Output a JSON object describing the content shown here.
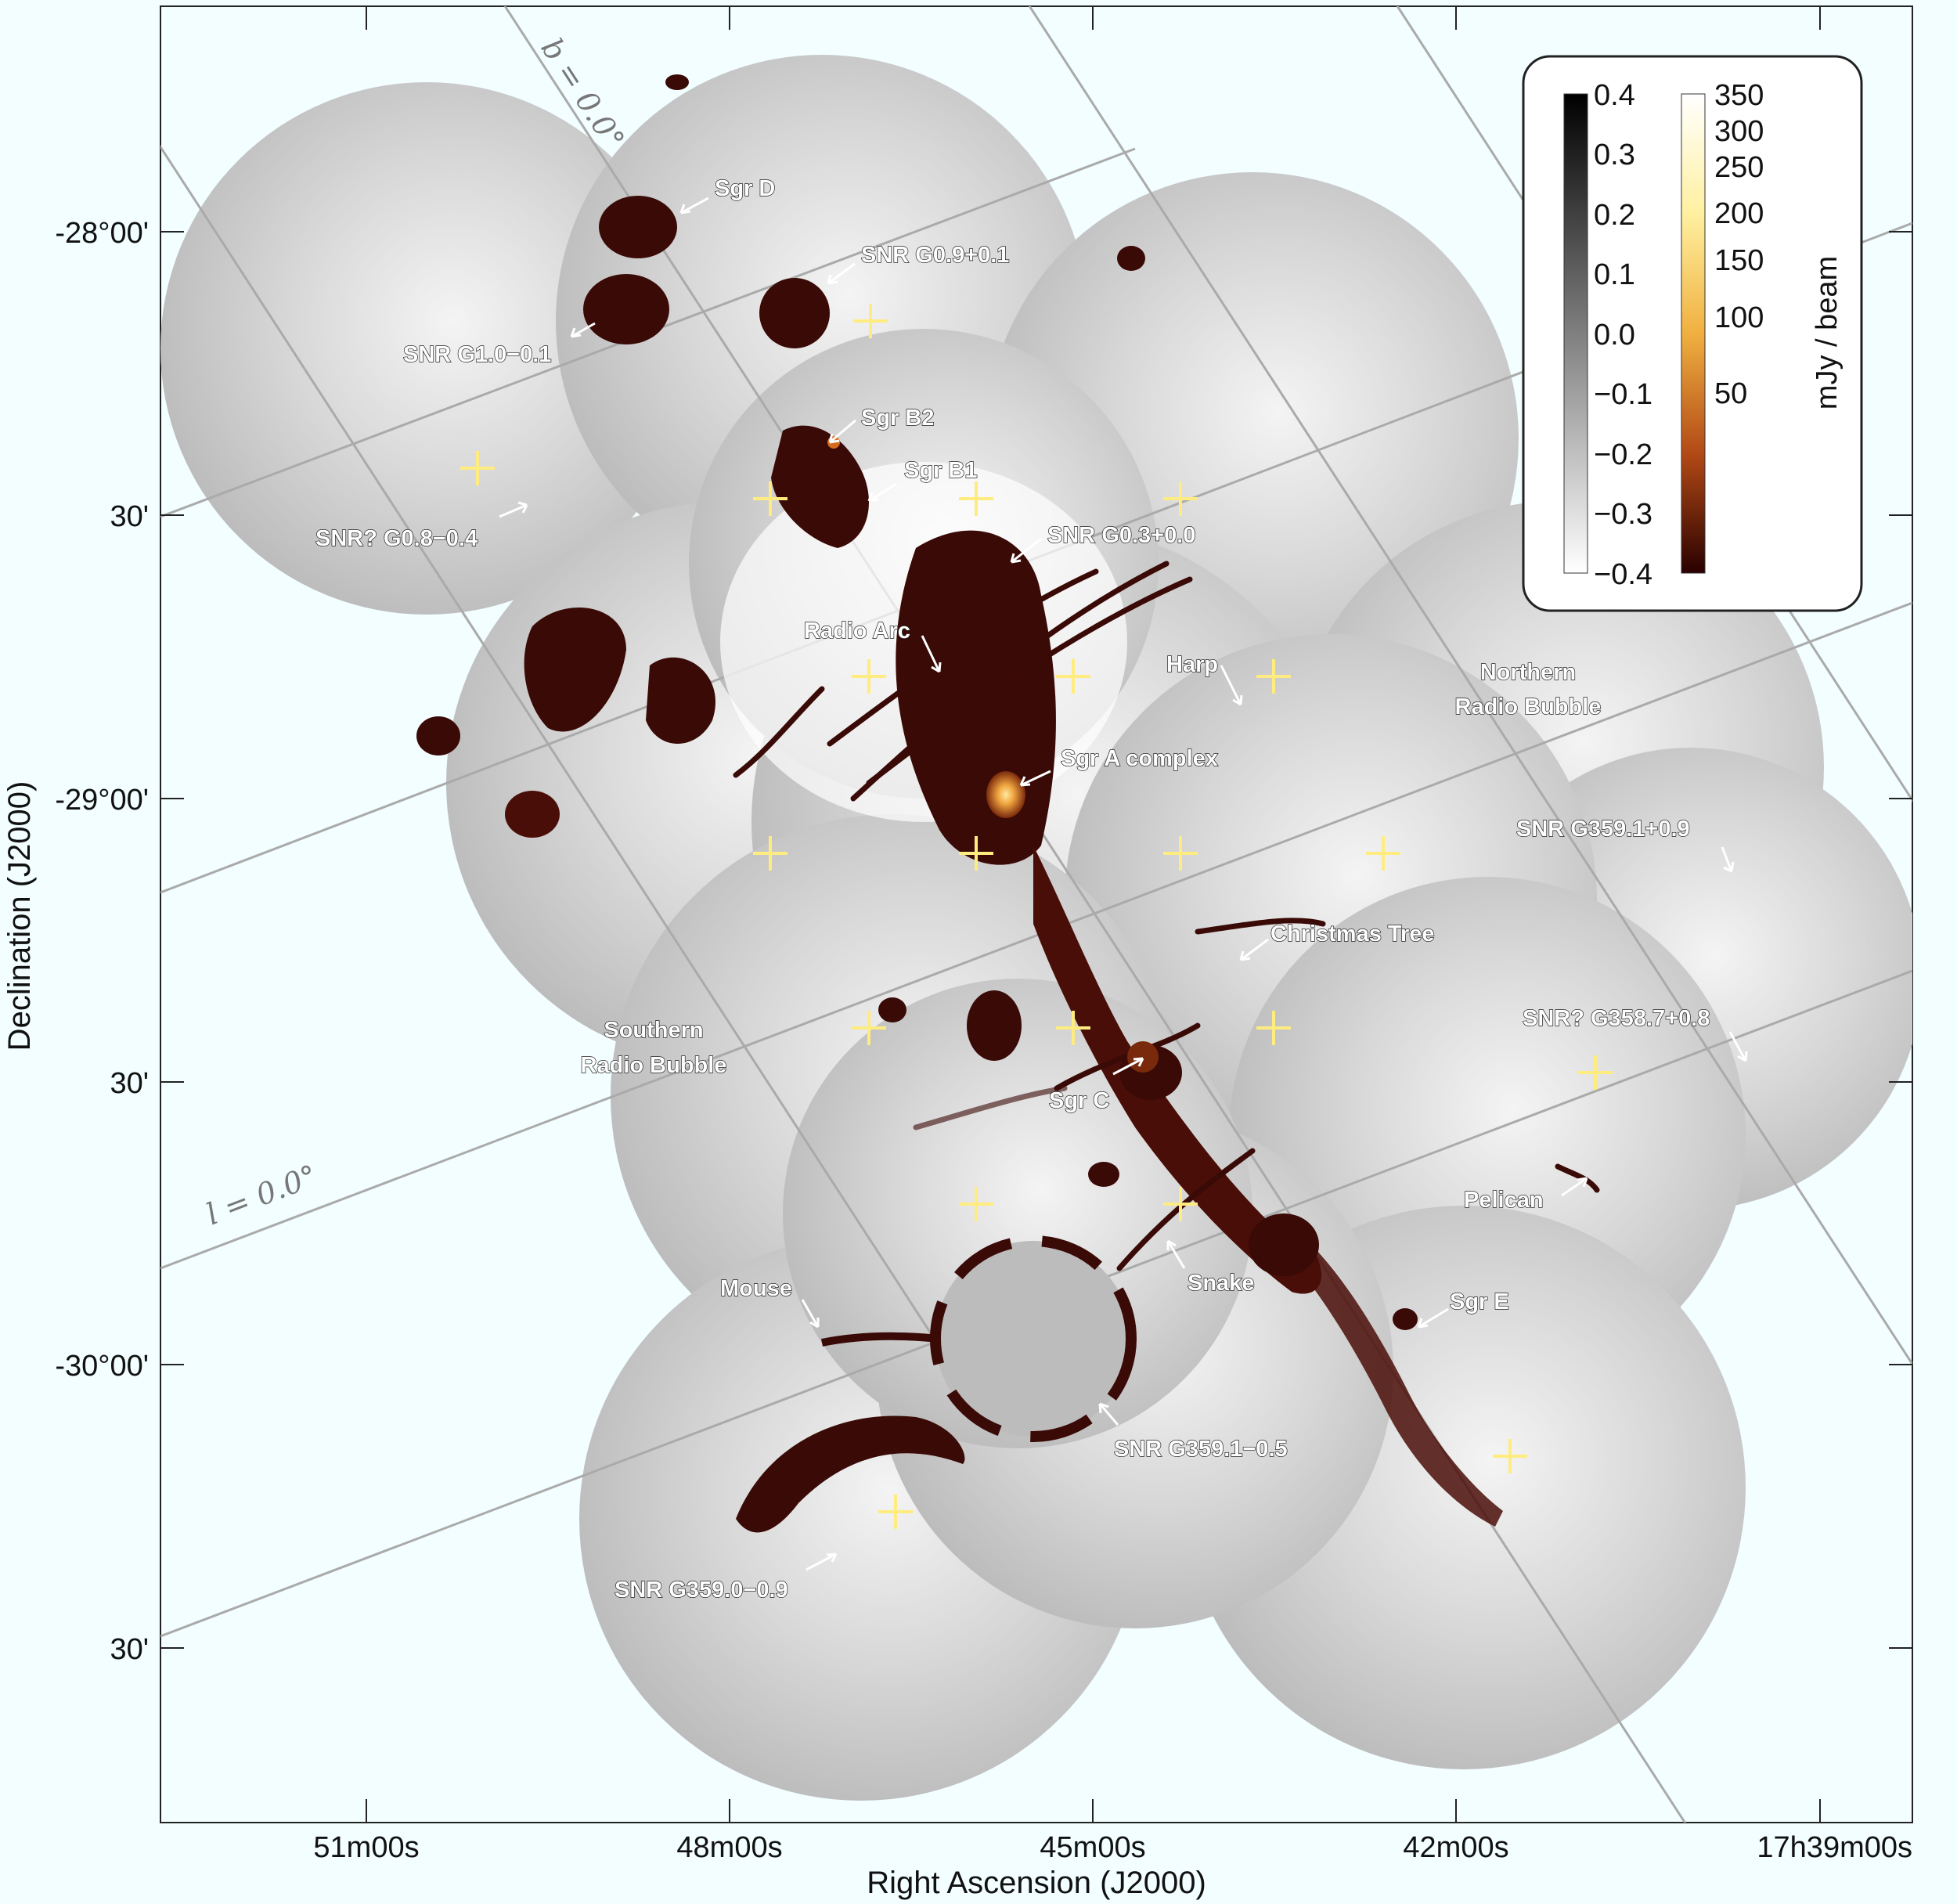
{
  "axes": {
    "x_title": "Right Ascension (J2000)",
    "y_title": "Declination (J2000)",
    "x_ticks": [
      "51m00s",
      "48m00s",
      "45m00s",
      "42m00s",
      "17h39m00s"
    ],
    "y_ticks": [
      "-28°00'",
      "30'",
      "-29°00'",
      "30'",
      "-30°00'",
      "30'"
    ],
    "grid_labels": {
      "b": "b = 0.0°",
      "l": "l = 0.0°"
    }
  },
  "colorbar": {
    "gray_labels": [
      "0.4",
      "0.3",
      "0.2",
      "0.1",
      "0.0",
      "−0.1",
      "−0.2",
      "−0.3",
      "−0.4"
    ],
    "color_labels": [
      "350",
      "300",
      "250",
      "200",
      "150",
      "100",
      "50"
    ],
    "unit": "mJy / beam"
  },
  "annotations": {
    "sgr_d": "Sgr D",
    "snr_g09": "SNR G0.9+0.1",
    "snr_g10": "SNR G1.0−0.1",
    "sgr_b2": "Sgr B2",
    "sgr_b1": "Sgr B1",
    "snr_g08": "SNR? G0.8−0.4",
    "snr_g03": "SNR G0.3+0.0",
    "radio_arc": "Radio Arc",
    "harp": "Harp",
    "northern_1": "Northern",
    "northern_2": "Radio Bubble",
    "sgr_a": "Sgr A complex",
    "snr_g359_1p": "SNR G359.1+0.9",
    "christmas_tree": "Christmas Tree",
    "southern_1": "Southern",
    "southern_2": "Radio Bubble",
    "snr_g358": "SNR? G358.7+0.8",
    "sgr_c": "Sgr C",
    "pelican": "Pelican",
    "snake": "Snake",
    "mouse": "Mouse",
    "sgr_e": "Sgr E",
    "snr_g359_1m": "SNR G359.1−0.5",
    "snr_g359_0": "SNR G359.0−0.9"
  },
  "colors": {
    "background": "#f2feff",
    "mosaic_gray": "#c9c9c9",
    "emission_dark": "#3a0a06",
    "emission_bright": "#f0a640",
    "marker": "#ffec80"
  }
}
